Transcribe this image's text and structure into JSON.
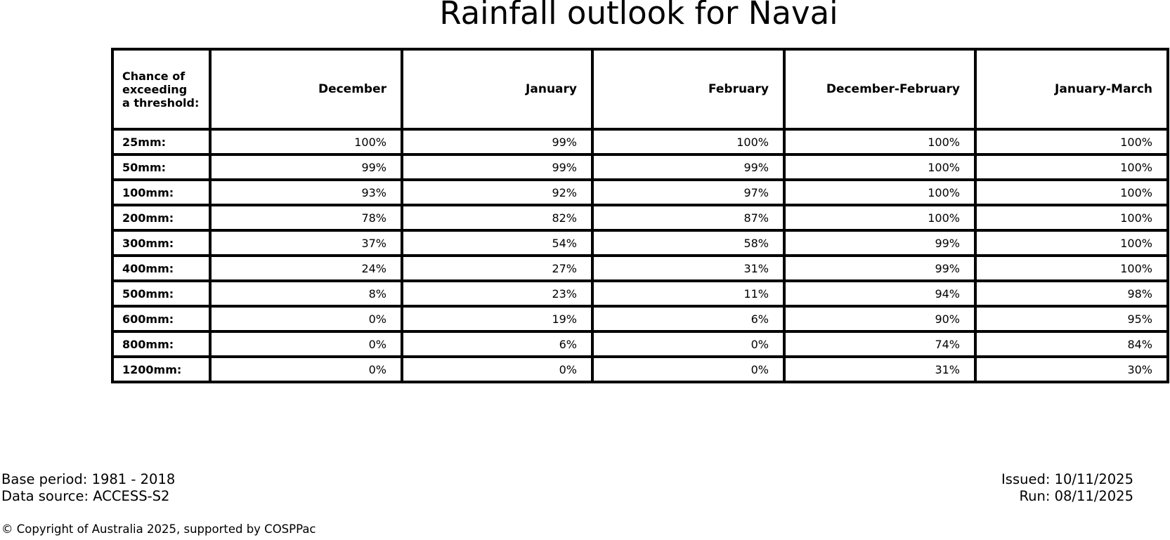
{
  "chart_data": {
    "type": "table",
    "title": "Rainfall outlook for Navai",
    "corner_header": "Chance of\nexceeding\na threshold:",
    "columns": [
      "December",
      "January",
      "February",
      "December-February",
      "January-March"
    ],
    "rows": [
      {
        "label": "25mm:",
        "values": [
          "100%",
          "99%",
          "100%",
          "100%",
          "100%"
        ]
      },
      {
        "label": "50mm:",
        "values": [
          "99%",
          "99%",
          "99%",
          "100%",
          "100%"
        ]
      },
      {
        "label": "100mm:",
        "values": [
          "93%",
          "92%",
          "97%",
          "100%",
          "100%"
        ]
      },
      {
        "label": "200mm:",
        "values": [
          "78%",
          "82%",
          "87%",
          "100%",
          "100%"
        ]
      },
      {
        "label": "300mm:",
        "values": [
          "37%",
          "54%",
          "58%",
          "99%",
          "100%"
        ]
      },
      {
        "label": "400mm:",
        "values": [
          "24%",
          "27%",
          "31%",
          "99%",
          "100%"
        ]
      },
      {
        "label": "500mm:",
        "values": [
          "8%",
          "23%",
          "11%",
          "94%",
          "98%"
        ]
      },
      {
        "label": "600mm:",
        "values": [
          "0%",
          "19%",
          "6%",
          "90%",
          "95%"
        ]
      },
      {
        "label": "800mm:",
        "values": [
          "0%",
          "6%",
          "0%",
          "74%",
          "84%"
        ]
      },
      {
        "label": "1200mm:",
        "values": [
          "0%",
          "0%",
          "0%",
          "31%",
          "30%"
        ]
      }
    ],
    "layout": {
      "border_color": "#000000",
      "background_color": "#ffffff",
      "text_color": "#000000"
    }
  },
  "footer": {
    "base_period": "Base period: 1981 - 2018",
    "data_source": "Data source: ACCESS-S2",
    "issued": "Issued: 10/11/2025",
    "run": "Run: 08/11/2025",
    "copyright": "© Copyright of Australia 2025, supported by COSPPac"
  }
}
